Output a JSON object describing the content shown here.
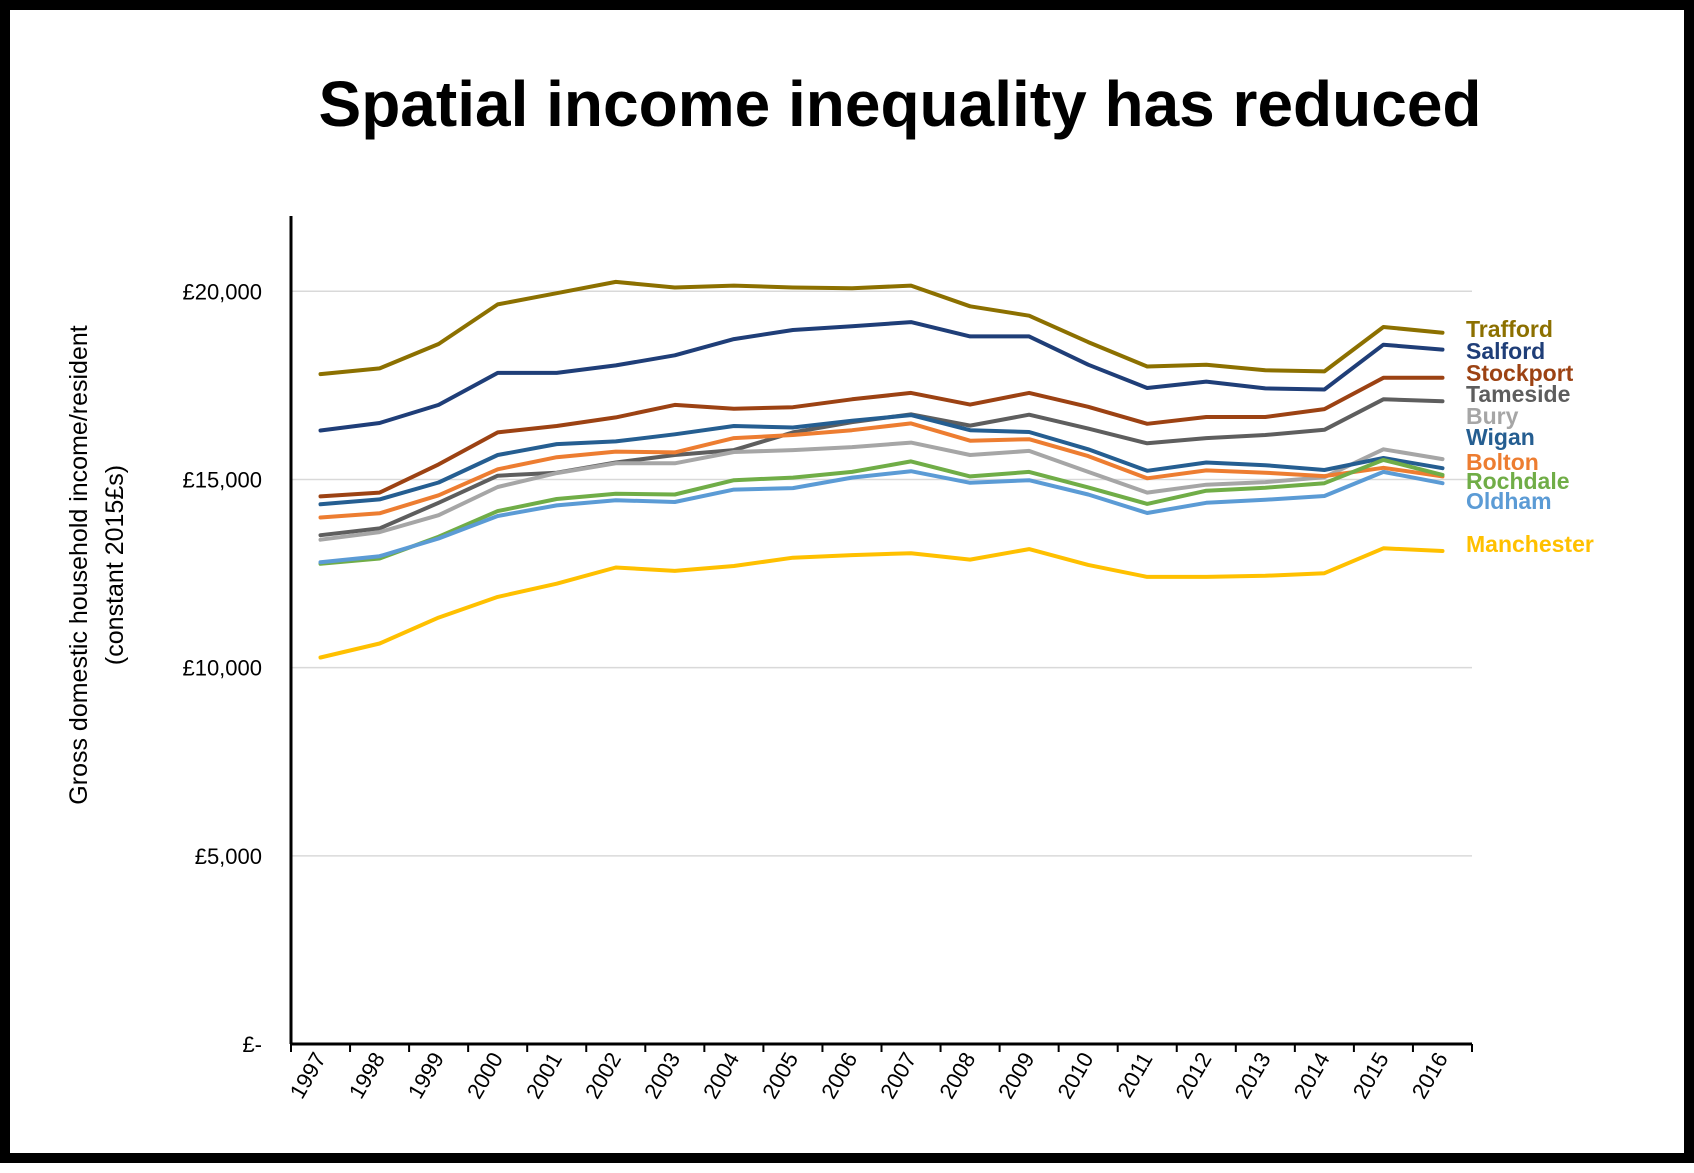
{
  "chart_data": {
    "type": "line",
    "title": "Spatial income inequality has reduced",
    "ylabel_line1": "Gross domestic household income/resident",
    "ylabel_line2": "(constant 2015£s)",
    "xlabel": "",
    "ylim": [
      0,
      22000
    ],
    "y_ticks": [
      {
        "value": 0,
        "label": "£-"
      },
      {
        "value": 5000,
        "label": "£5,000"
      },
      {
        "value": 10000,
        "label": "£10,000"
      },
      {
        "value": 15000,
        "label": "£15,000"
      },
      {
        "value": 20000,
        "label": "£20,000"
      }
    ],
    "grid": "horizontal",
    "legend": "direct labels at right end of lines",
    "x": [
      "1997",
      "1998",
      "1999",
      "2000",
      "2001",
      "2002",
      "2003",
      "2004",
      "2005",
      "2006",
      "2007",
      "2008",
      "2009",
      "2010",
      "2011",
      "2012",
      "2013",
      "2014",
      "2015",
      "2016"
    ],
    "series": [
      {
        "name": "Trafford",
        "color": "#8C7000",
        "values": [
          17800,
          17950,
          18600,
          19650,
          19950,
          20250,
          20100,
          20150,
          20100,
          20080,
          20150,
          19600,
          19350,
          18650,
          18000,
          18050,
          17900,
          17870,
          19050,
          18900
        ]
      },
      {
        "name": "Salford",
        "color": "#1F3E78",
        "values": [
          16300,
          16500,
          16980,
          17830,
          17830,
          18030,
          18300,
          18730,
          18970,
          19070,
          19180,
          18800,
          18800,
          18050,
          17430,
          17600,
          17420,
          17390,
          18580,
          18450
        ]
      },
      {
        "name": "Stockport",
        "color": "#9C4213",
        "values": [
          14550,
          14650,
          15400,
          16250,
          16420,
          16650,
          16980,
          16880,
          16920,
          17130,
          17300,
          16990,
          17300,
          16930,
          16480,
          16660,
          16660,
          16870,
          17700,
          17700
        ]
      },
      {
        "name": "Tameside",
        "color": "#5E5E5E",
        "values": [
          13520,
          13700,
          14380,
          15100,
          15180,
          15450,
          15650,
          15780,
          16250,
          16520,
          16730,
          16430,
          16720,
          16350,
          15960,
          16100,
          16180,
          16320,
          17130,
          17080
        ]
      },
      {
        "name": "Bury",
        "color": "#A6A6A6",
        "values": [
          13400,
          13600,
          14050,
          14800,
          15170,
          15430,
          15430,
          15730,
          15780,
          15860,
          15980,
          15650,
          15760,
          15200,
          14650,
          14860,
          14930,
          15060,
          15800,
          15540
        ]
      },
      {
        "name": "Wigan",
        "color": "#255E91",
        "values": [
          14340,
          14470,
          14920,
          15650,
          15940,
          16010,
          16200,
          16420,
          16380,
          16560,
          16710,
          16310,
          16260,
          15800,
          15230,
          15450,
          15380,
          15250,
          15570,
          15300
        ]
      },
      {
        "name": "Bolton",
        "color": "#ED7D31",
        "values": [
          13990,
          14100,
          14580,
          15270,
          15590,
          15740,
          15720,
          16100,
          16180,
          16310,
          16490,
          16030,
          16070,
          15620,
          15030,
          15240,
          15180,
          15090,
          15310,
          15080
        ]
      },
      {
        "name": "Rochdale",
        "color": "#70AD47",
        "values": [
          12760,
          12900,
          13480,
          14160,
          14480,
          14620,
          14600,
          14980,
          15050,
          15200,
          15480,
          15080,
          15200,
          14790,
          14350,
          14700,
          14780,
          14900,
          15520,
          15120
        ]
      },
      {
        "name": "Oldham",
        "color": "#5B9BD5",
        "values": [
          12800,
          12960,
          13430,
          14030,
          14310,
          14450,
          14400,
          14730,
          14770,
          15050,
          15220,
          14910,
          14980,
          14600,
          14110,
          14380,
          14460,
          14560,
          15200,
          14900
        ]
      },
      {
        "name": "Manchester",
        "color": "#FFC000",
        "values": [
          10270,
          10640,
          11330,
          11880,
          12230,
          12660,
          12570,
          12700,
          12920,
          12990,
          13040,
          12870,
          13150,
          12730,
          12410,
          12410,
          12440,
          12510,
          13170,
          13100
        ]
      }
    ]
  }
}
